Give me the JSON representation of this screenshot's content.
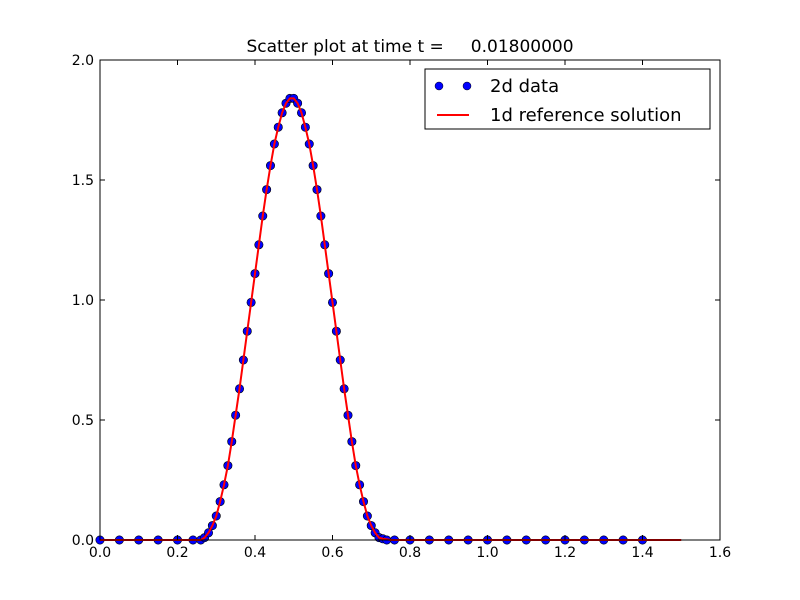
{
  "chart_data": {
    "type": "scatter",
    "title": "Scatter plot at time t =     0.01800000",
    "xlabel": "",
    "ylabel": "",
    "xlim": [
      0.0,
      1.6
    ],
    "ylim": [
      0.0,
      2.0
    ],
    "x_ticks": [
      0.0,
      0.2,
      0.4,
      0.6,
      0.8,
      1.0,
      1.2,
      1.4,
      1.6
    ],
    "x_tick_labels": [
      "0.0",
      "0.2",
      "0.4",
      "0.6",
      "0.8",
      "1.0",
      "1.2",
      "1.4",
      "1.6"
    ],
    "y_ticks": [
      0.0,
      0.5,
      1.0,
      1.5,
      2.0
    ],
    "y_tick_labels": [
      "0.0",
      "0.5",
      "1.0",
      "1.5",
      "2.0"
    ],
    "grid": false,
    "legend_position": "top-right",
    "series": [
      {
        "name": "2d data",
        "kind": "scatter",
        "color": "#0000ff",
        "edge_color": "#000000",
        "x": [
          0.0,
          0.05,
          0.1,
          0.15,
          0.2,
          0.24,
          0.26,
          0.27,
          0.28,
          0.29,
          0.3,
          0.31,
          0.32,
          0.33,
          0.34,
          0.35,
          0.36,
          0.37,
          0.38,
          0.39,
          0.4,
          0.41,
          0.42,
          0.43,
          0.44,
          0.45,
          0.46,
          0.47,
          0.48,
          0.49,
          0.5,
          0.51,
          0.52,
          0.53,
          0.54,
          0.55,
          0.56,
          0.57,
          0.58,
          0.59,
          0.6,
          0.61,
          0.62,
          0.63,
          0.64,
          0.65,
          0.66,
          0.67,
          0.68,
          0.69,
          0.7,
          0.71,
          0.72,
          0.73,
          0.74,
          0.76,
          0.8,
          0.85,
          0.9,
          0.95,
          1.0,
          1.05,
          1.1,
          1.15,
          1.2,
          1.25,
          1.3,
          1.35,
          1.4
        ],
        "y": [
          0.0,
          0.0,
          0.0,
          0.0,
          0.0,
          0.0,
          0.0,
          0.01,
          0.03,
          0.06,
          0.1,
          0.16,
          0.23,
          0.31,
          0.41,
          0.52,
          0.63,
          0.75,
          0.87,
          0.99,
          1.11,
          1.23,
          1.35,
          1.46,
          1.56,
          1.65,
          1.72,
          1.78,
          1.82,
          1.84,
          1.84,
          1.82,
          1.78,
          1.72,
          1.65,
          1.56,
          1.46,
          1.35,
          1.23,
          1.11,
          0.99,
          0.87,
          0.75,
          0.63,
          0.52,
          0.41,
          0.31,
          0.23,
          0.16,
          0.1,
          0.06,
          0.03,
          0.01,
          0.005,
          0.0,
          0.0,
          0.0,
          0.0,
          0.0,
          0.0,
          0.0,
          0.0,
          0.0,
          0.0,
          0.0,
          0.0,
          0.0,
          0.0,
          0.0
        ]
      },
      {
        "name": "1d reference solution",
        "kind": "line",
        "color": "#ff0000",
        "x": [
          0.0,
          0.25,
          0.26,
          0.27,
          0.28,
          0.29,
          0.3,
          0.31,
          0.32,
          0.33,
          0.34,
          0.35,
          0.36,
          0.37,
          0.38,
          0.39,
          0.4,
          0.41,
          0.42,
          0.43,
          0.44,
          0.45,
          0.46,
          0.47,
          0.48,
          0.49,
          0.5,
          0.51,
          0.52,
          0.53,
          0.54,
          0.55,
          0.56,
          0.57,
          0.58,
          0.59,
          0.6,
          0.61,
          0.62,
          0.63,
          0.64,
          0.65,
          0.66,
          0.67,
          0.68,
          0.69,
          0.7,
          0.71,
          0.72,
          0.73,
          0.75,
          1.0,
          1.5
        ],
        "y": [
          0.0,
          0.0,
          0.0,
          0.01,
          0.03,
          0.06,
          0.1,
          0.16,
          0.23,
          0.31,
          0.41,
          0.52,
          0.63,
          0.75,
          0.87,
          0.99,
          1.11,
          1.23,
          1.35,
          1.46,
          1.56,
          1.65,
          1.72,
          1.78,
          1.82,
          1.84,
          1.84,
          1.82,
          1.78,
          1.72,
          1.65,
          1.56,
          1.46,
          1.35,
          1.23,
          1.11,
          0.99,
          0.87,
          0.75,
          0.63,
          0.52,
          0.41,
          0.31,
          0.23,
          0.16,
          0.1,
          0.06,
          0.03,
          0.01,
          0.005,
          0.0,
          0.0,
          0.0
        ]
      }
    ]
  }
}
